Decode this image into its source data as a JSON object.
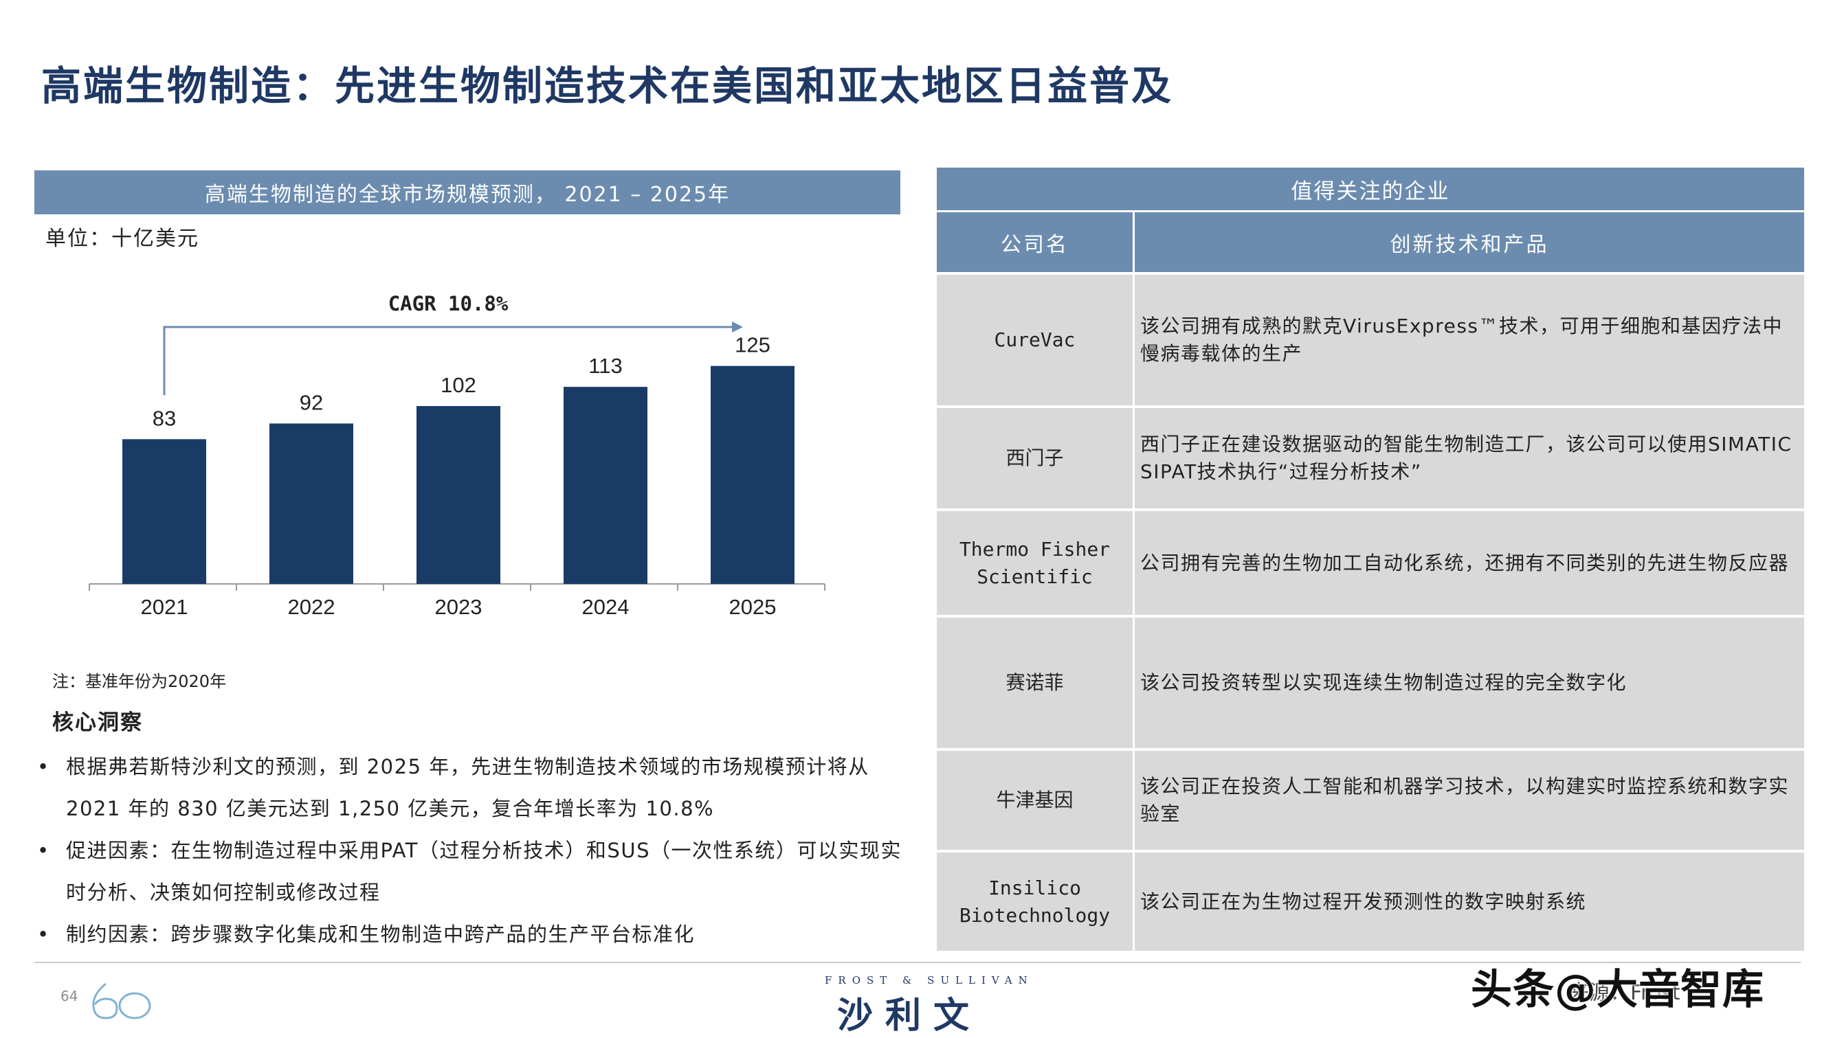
{
  "title": "高端生物制造：先进生物制造技术在美国和亚太地区日益普及",
  "chart_panel": {
    "header": "高端生物制造的全球市场规模预测，  2021 – 2025年",
    "unit": "单位：十亿美元",
    "note": "注：基准年份为2020年"
  },
  "chart_data": {
    "type": "bar",
    "categories": [
      "2021",
      "2022",
      "2023",
      "2024",
      "2025"
    ],
    "values": [
      83,
      92,
      102,
      113,
      125
    ],
    "annotation": "CAGR 10.8%",
    "bar_color": "#1a3b66"
  },
  "insights": {
    "title": "核心洞察",
    "bullets": [
      "根据弗若斯特沙利文的预测，到 2025 年，先进生物制造技术领域的市场规模预计将从 2021 年的 830 亿美元达到 1,250 亿美元，复合年增长率为 10.8%",
      "促进因素：在生物制造过程中采用PAT（过程分析技术）和SUS（一次性系统）可以实现实时分析、决策如何控制或修改过程",
      "制约因素：跨步骤数字化集成和生物制造中跨产品的生产平台标准化"
    ]
  },
  "companies_table": {
    "title": "值得关注的企业",
    "headers": [
      "公司名",
      "创新技术和产品"
    ],
    "rows": [
      {
        "name": "CureVac",
        "desc": "该公司拥有成熟的默克VirusExpress™技术，可用于细胞和基因疗法中慢病毒载体的生产"
      },
      {
        "name": "西门子",
        "desc": "西门子正在建设数据驱动的智能生物制造工厂，该公司可以使用SIMATIC SIPAT技术执行“过程分析技术”"
      },
      {
        "name": "Thermo Fisher\nScientific",
        "desc": "公司拥有完善的生物加工自动化系统，还拥有不同类别的先进生物反应器"
      },
      {
        "name": "赛诺菲",
        "desc": "该公司投资转型以实现连续生物制造过程的完全数字化"
      },
      {
        "name": "牛津基因",
        "desc": "该公司正在投资人工智能和机器学习技术，以构建实时监控系统和数字实验室"
      },
      {
        "name": "Insilico\nBiotechnology",
        "desc": "该公司正在为生物过程开发预测性的数字映射系统"
      }
    ]
  },
  "footer": {
    "page_number": "64",
    "brand_en": "FROST & SULLIVAN",
    "brand_cn": "沙利文",
    "source_fragment": "来源：Frost",
    "watermark": "头条@大音智库"
  },
  "colors": {
    "title": "#1f3864",
    "header_bg": "#6b8caf",
    "row_bg": "#d9d9d9",
    "bar": "#1a3b66"
  }
}
